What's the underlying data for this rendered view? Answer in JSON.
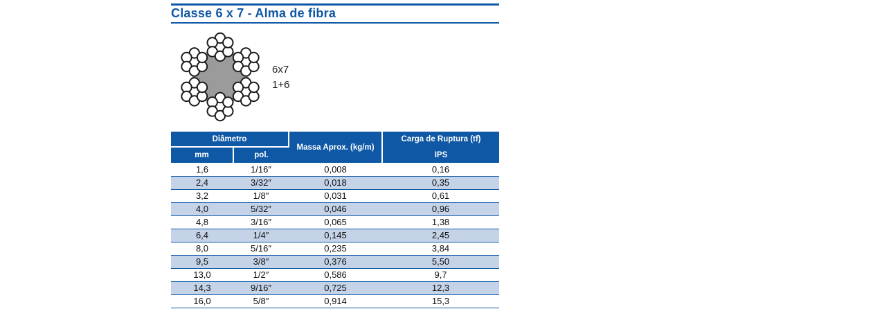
{
  "header": {
    "title": "Classe 6 x 7 - Alma de fibra"
  },
  "diagram": {
    "construction": "6x7",
    "strand_formula": "1+6"
  },
  "colors": {
    "accent": "#0E58A5",
    "stripe": "#C5D3E8",
    "core_gray": "#9B9B9B",
    "wire_outline": "#1A1A1A"
  },
  "table": {
    "headers": {
      "diameter_group": "Diâmetro",
      "mm": "mm",
      "pol": "pol.",
      "mass": "Massa Aprox. (kg/m)",
      "breaking_load": "Carga de Ruptura (tf)",
      "grade": "IPS"
    },
    "rows": [
      {
        "mm": "1,6",
        "pol": "1/16″",
        "massa": "0,008",
        "carga": "0,16"
      },
      {
        "mm": "2,4",
        "pol": "3/32″",
        "massa": "0,018",
        "carga": "0,35"
      },
      {
        "mm": "3,2",
        "pol": "1/8″",
        "massa": "0,031",
        "carga": "0,61"
      },
      {
        "mm": "4,0",
        "pol": "5/32″",
        "massa": "0,046",
        "carga": "0,96"
      },
      {
        "mm": "4,8",
        "pol": "3/16″",
        "massa": "0,065",
        "carga": "1,38"
      },
      {
        "mm": "6,4",
        "pol": "1/4″",
        "massa": "0,145",
        "carga": "2,45"
      },
      {
        "mm": "8,0",
        "pol": "5/16″",
        "massa": "0,235",
        "carga": "3,84"
      },
      {
        "mm": "9,5",
        "pol": "3/8″",
        "massa": "0,376",
        "carga": "5,50"
      },
      {
        "mm": "13,0",
        "pol": "1/2″",
        "massa": "0,586",
        "carga": "9,7"
      },
      {
        "mm": "14,3",
        "pol": "9/16″",
        "massa": "0,725",
        "carga": "12,3"
      },
      {
        "mm": "16,0",
        "pol": "5/8″",
        "massa": "0,914",
        "carga": "15,3"
      }
    ]
  }
}
